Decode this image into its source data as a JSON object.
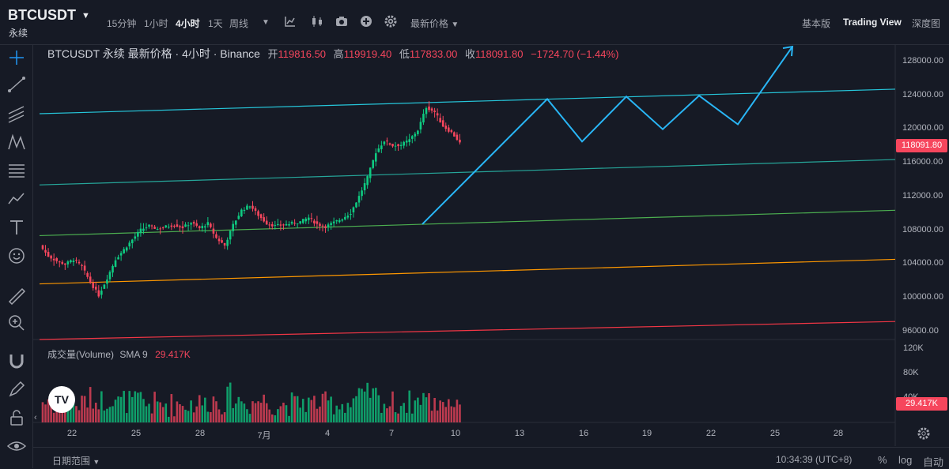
{
  "header": {
    "symbol": "BTCUSDT",
    "contract_type": "永续",
    "timeframes": [
      "15分钟",
      "1小时",
      "4小时",
      "1天",
      "周线"
    ],
    "active_timeframe": "4小时",
    "price_type": "最新价格",
    "views": [
      "基本版",
      "Trading View",
      "深度图"
    ],
    "active_view": "Trading View"
  },
  "legend": {
    "title": "BTCUSDT 永续 最新价格 · 4小时 · Binance",
    "open_label": "开",
    "open": "119816.50",
    "high_label": "高",
    "high": "119919.40",
    "low_label": "低",
    "low": "117833.00",
    "close_label": "收",
    "close": "118091.80",
    "change": "−1724.70 (−1.44%)"
  },
  "volume_legend": {
    "title": "成交量(Volume)",
    "sma": "SMA 9",
    "value": "29.417K"
  },
  "price_axis": [
    "128000.00",
    "124000.00",
    "120000.00",
    "116000.00",
    "112000.00",
    "108000.00",
    "104000.00",
    "100000.00",
    "96000.00"
  ],
  "current_price_tag": "118091.80",
  "volume_axis": [
    "120K",
    "80K",
    "40K"
  ],
  "volume_tag": "29.417K",
  "date_axis": [
    "22",
    "25",
    "28",
    "7月",
    "4",
    "7",
    "10",
    "13",
    "16",
    "19",
    "22",
    "25",
    "28"
  ],
  "bottom": {
    "date_range": "日期范围",
    "clock": "10:34:39 (UTC+8)",
    "percent": "%",
    "log": "log",
    "auto": "自动"
  },
  "colors": {
    "up": "#0ecb81",
    "down": "#f6465d",
    "cyan_line": "#26c6da",
    "teal_line": "#26a69a",
    "green_line": "#4caf50",
    "orange_line": "#ff9800",
    "red_line": "#f23645",
    "projection": "#29b6f6"
  },
  "chart_data": {
    "type": "candlestick",
    "timeframe": "4h",
    "price_range": [
      94000,
      130000
    ],
    "last_close": 118091.8,
    "approx_closes": [
      105500,
      104200,
      103600,
      103200,
      103800,
      102900,
      101000,
      99400,
      101500,
      103800,
      105000,
      106200,
      107400,
      107900,
      107500,
      107800,
      108000,
      107700,
      108300,
      107600,
      108200,
      106400,
      105500,
      108000,
      109800,
      110400,
      109200,
      108200,
      107900,
      108000,
      108200,
      108400,
      108900,
      108100,
      107800,
      108300,
      108800,
      109500,
      111500,
      113800,
      116900,
      118300,
      117700,
      117800,
      118400,
      119600,
      122400,
      121800,
      120100,
      119300,
      118092
    ],
    "volume_range_k": [
      0,
      130
    ],
    "last_volume_k": 29.417,
    "drawings": [
      {
        "name": "upper-channel",
        "color": "#26c6da",
        "from": 121600,
        "to": 124600
      },
      {
        "name": "channel-2",
        "color": "#26a69a",
        "from": 112900,
        "to": 116000
      },
      {
        "name": "channel-3",
        "color": "#4caf50",
        "from": 106700,
        "to": 109800
      },
      {
        "name": "channel-4",
        "color": "#ff9800",
        "from": 100800,
        "to": 103800
      },
      {
        "name": "channel-5",
        "color": "#f23645",
        "from": 94000,
        "to": 96200
      }
    ],
    "projection_path": [
      108100,
      123400,
      118200,
      123700,
      119700,
      123800,
      120300,
      129800
    ]
  }
}
